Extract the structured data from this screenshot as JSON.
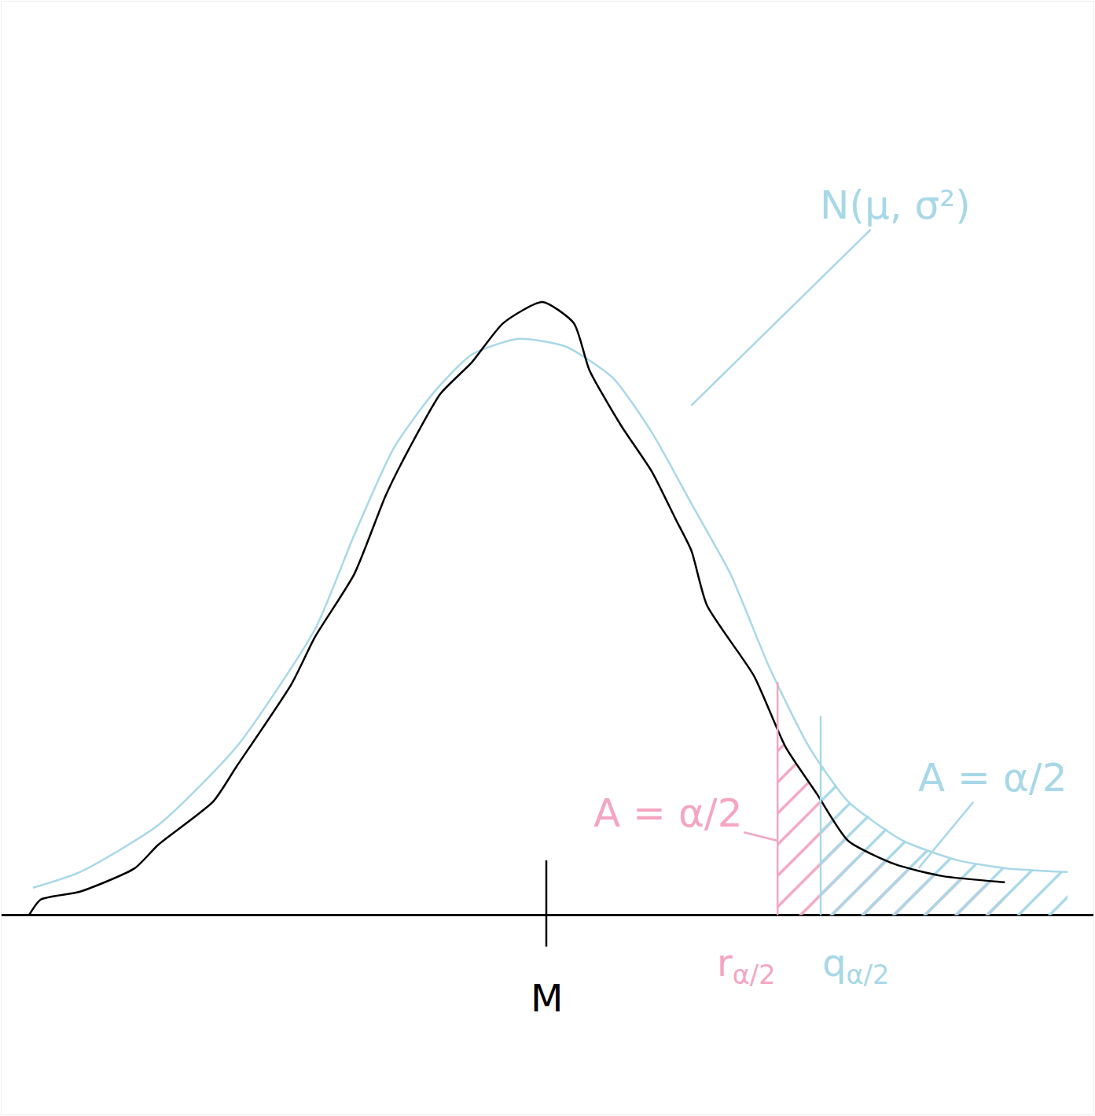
{
  "chart_data": {
    "type": "line",
    "tick_labels": false,
    "grid": false,
    "xlim": [
      -6.95,
      6.98
    ],
    "ylim": [
      -2.54,
      11.65
    ],
    "xticks": [],
    "yticks": [],
    "series": [
      {
        "color": "#a8d8e8",
        "x": [
          -6.55,
          -5.95,
          -4.95,
          -3.95,
          -2.95,
          -2.45,
          -1.95,
          -1.45,
          -0.95,
          -0.35,
          0.25,
          0.85,
          1.35,
          1.85,
          2.35,
          2.85,
          3.35,
          3.85,
          4.55,
          5.25,
          5.85,
          6.65
        ],
        "values": [
          0.35,
          0.55,
          1.15,
          2.15,
          3.65,
          4.85,
          5.95,
          6.65,
          7.15,
          7.35,
          7.25,
          6.85,
          6.15,
          5.25,
          4.35,
          3.15,
          2.15,
          1.45,
          0.95,
          0.7,
          0.6,
          0.55
        ]
      },
      {
        "color": "#000000",
        "x": [
          -6.6,
          -6.45,
          -5.95,
          -5.25,
          -4.95,
          -4.25,
          -3.95,
          -3.25,
          -2.95,
          -2.45,
          -2.05,
          -1.75,
          -1.35,
          -0.95,
          -0.55,
          -0.05,
          0.35,
          0.55,
          0.95,
          1.35,
          1.65,
          1.85,
          2.05,
          2.65,
          3.05,
          3.45,
          3.85,
          4.45,
          5.05,
          5.85
        ],
        "values": [
          0,
          0.2,
          0.3,
          0.6,
          0.9,
          1.45,
          1.9,
          2.95,
          3.55,
          4.35,
          5.35,
          5.95,
          6.65,
          7.05,
          7.55,
          7.82,
          7.55,
          6.95,
          6.25,
          5.65,
          5.05,
          4.65,
          3.95,
          3.05,
          2.15,
          1.55,
          0.95,
          0.65,
          0.5,
          0.42
        ]
      }
    ],
    "markers": [
      {
        "label": "M",
        "x": 0,
        "color": "#000000"
      },
      {
        "label": "r",
        "sub": "α/2",
        "x": 2.95,
        "color": "#f4a6c0",
        "series": 1
      },
      {
        "label": "q",
        "sub": "α/2",
        "x": 3.5,
        "color": "#a8d8e8",
        "series": 0
      }
    ],
    "annotations": [
      {
        "text": "A = α/2",
        "x": 1.55,
        "y": 1.3,
        "color": "#f4a6c0",
        "arrow_x": 2.95,
        "arrow_y": 0.95
      },
      {
        "text": "A = α/2",
        "x": 5.7,
        "y": 1.75,
        "color": "#a8d8e8",
        "arrow_x": 4.75,
        "arrow_y": 0.6
      },
      {
        "text": "N(μ, σ²)",
        "x": 4.45,
        "y": 9.05,
        "color": "#a8d8e8",
        "arrow_x": 1.85,
        "arrow_y": 6.5
      }
    ]
  }
}
